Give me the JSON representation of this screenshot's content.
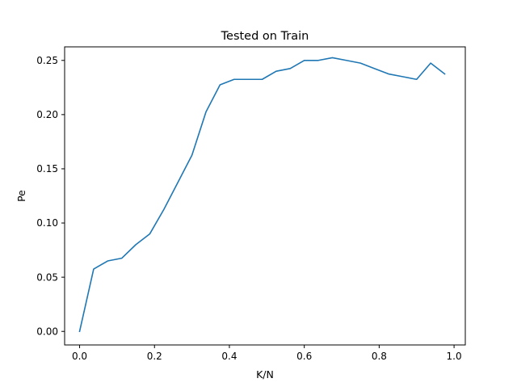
{
  "chart_data": {
    "type": "line",
    "title": "Tested on Train",
    "xlabel": "K/N",
    "ylabel": "Pe",
    "xlim": [
      -0.04,
      1.03
    ],
    "ylim": [
      -0.0125,
      0.2625
    ],
    "xticks": [
      0.0,
      0.2,
      0.4,
      0.6,
      0.8,
      1.0
    ],
    "xtick_labels": [
      "0.0",
      "0.2",
      "0.4",
      "0.6",
      "0.8",
      "1.0"
    ],
    "yticks": [
      0.0,
      0.05,
      0.1,
      0.15,
      0.2,
      0.25
    ],
    "ytick_labels": [
      "0.00",
      "0.05",
      "0.10",
      "0.15",
      "0.20",
      "0.25"
    ],
    "grid": false,
    "legend": "none",
    "series": [
      {
        "color": "#1f77b4",
        "x": [
          0.0,
          0.0375,
          0.075,
          0.1125,
          0.15,
          0.1875,
          0.225,
          0.2625,
          0.3,
          0.3375,
          0.375,
          0.4125,
          0.45,
          0.4875,
          0.525,
          0.5625,
          0.6,
          0.6375,
          0.675,
          0.7125,
          0.75,
          0.7875,
          0.825,
          0.8625,
          0.9,
          0.9375,
          0.975
        ],
        "y": [
          0.0,
          0.0575,
          0.065,
          0.0675,
          0.08,
          0.09,
          0.1125,
          0.1375,
          0.1625,
          0.2025,
          0.2275,
          0.2325,
          0.2325,
          0.2325,
          0.24,
          0.2425,
          0.25,
          0.25,
          0.2525,
          0.25,
          0.2475,
          0.2425,
          0.2375,
          0.235,
          0.2325,
          0.2475,
          0.2375
        ]
      }
    ]
  }
}
